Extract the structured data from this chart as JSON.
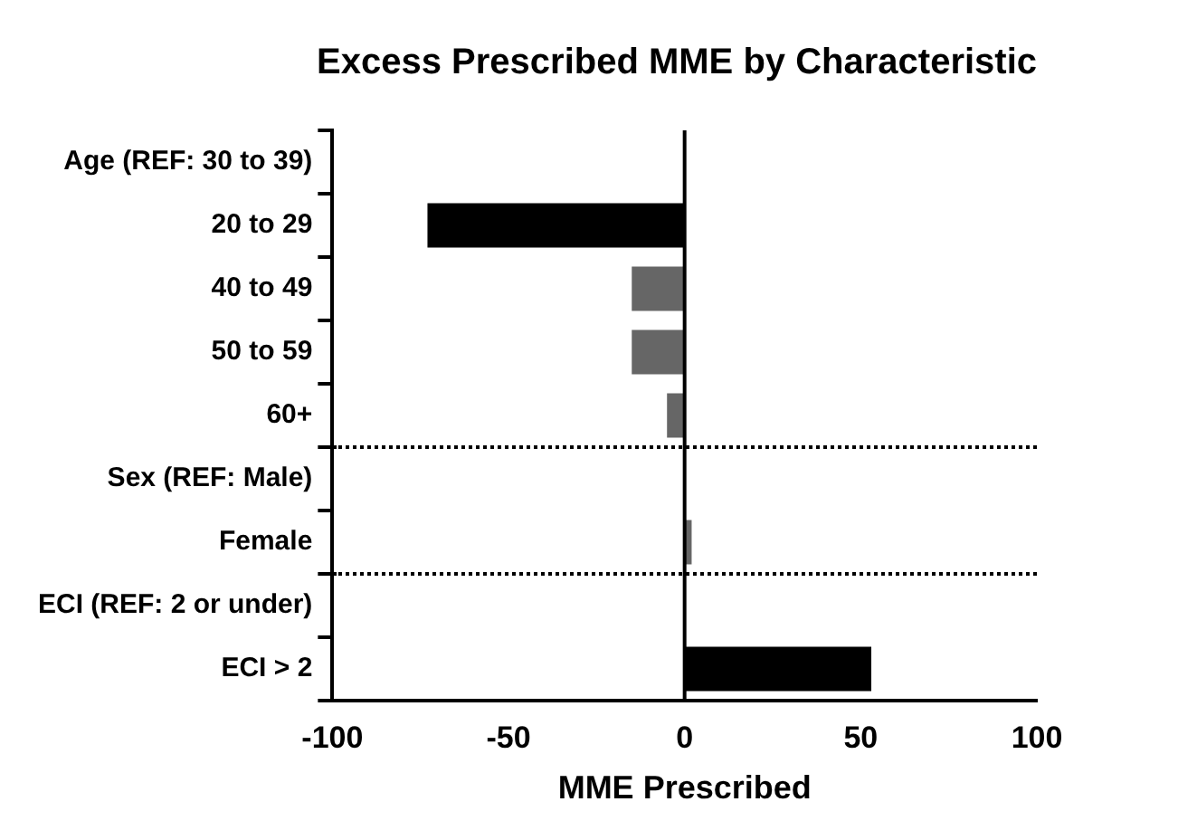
{
  "chart_data": {
    "type": "bar",
    "orientation": "horizontal",
    "title": "Excess Prescribed MME by Characteristic",
    "xlabel": "MME Prescribed",
    "categories": [
      "Age (REF: 30 to 39)",
      "20 to 29",
      "40 to 49",
      "50 to 59",
      "60+",
      "Sex (REF: Male)",
      "Female",
      "ECI (REF: 2 or under)",
      "ECI > 2"
    ],
    "values": [
      null,
      -73,
      -15,
      -15,
      -5,
      null,
      2,
      null,
      53
    ],
    "colors": [
      "#000000",
      "#000000",
      "#666666",
      "#666666",
      "#666666",
      "#000000",
      "#666666",
      "#000000",
      "#000000"
    ],
    "xlim": [
      -100,
      100
    ],
    "xticks": [
      -100,
      -50,
      0,
      50,
      100
    ],
    "ref_lines": [
      {
        "axis": "x",
        "value": 0,
        "color": "#000000"
      }
    ],
    "grid": false,
    "legend": false
  }
}
